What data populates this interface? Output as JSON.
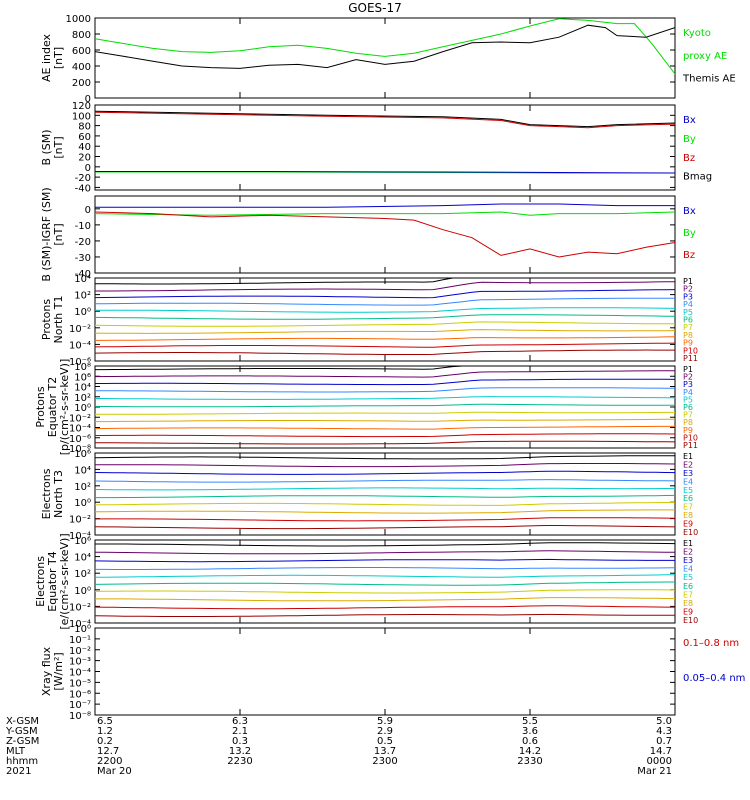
{
  "title": "GOES-17",
  "colors": {
    "black": "#000000",
    "green": "#00dd00",
    "red": "#cc0000",
    "blue": "#0000cc",
    "darkred": "#990000"
  },
  "chart_data": [
    {
      "type": "line",
      "ylabel": [
        "AE index",
        "[nT]"
      ],
      "ylim": [
        0,
        1000
      ],
      "yticks": [
        "0",
        "200",
        "400",
        "600",
        "800",
        "1000"
      ],
      "legend": [
        {
          "label": "Kyoto",
          "color": "#00dd00"
        },
        {
          "label": "proxy AE",
          "color": "#00dd00"
        },
        {
          "label": "Themis AE",
          "color": "#000000"
        }
      ],
      "series": [
        {
          "name": "Kyoto proxy AE",
          "color": "#00dd00",
          "x": [
            0,
            0.05,
            0.1,
            0.15,
            0.2,
            0.25,
            0.3,
            0.35,
            0.4,
            0.45,
            0.5,
            0.55,
            0.6,
            0.65,
            0.7,
            0.75,
            0.8,
            0.85,
            0.9,
            0.93,
            0.96,
            1.0
          ],
          "y": [
            740,
            680,
            620,
            580,
            570,
            590,
            640,
            660,
            620,
            560,
            520,
            560,
            640,
            720,
            800,
            900,
            990,
            970,
            930,
            930,
            680,
            300
          ]
        },
        {
          "name": "Themis AE",
          "color": "#000000",
          "x": [
            0,
            0.05,
            0.1,
            0.15,
            0.2,
            0.25,
            0.3,
            0.35,
            0.4,
            0.45,
            0.5,
            0.55,
            0.6,
            0.65,
            0.7,
            0.75,
            0.8,
            0.85,
            0.88,
            0.9,
            0.95,
            1.0
          ],
          "y": [
            580,
            520,
            460,
            400,
            380,
            370,
            410,
            420,
            380,
            480,
            420,
            460,
            580,
            690,
            700,
            690,
            760,
            910,
            880,
            780,
            760,
            880
          ]
        }
      ]
    },
    {
      "type": "line",
      "ylabel": [
        "B (SM)",
        "[nT]"
      ],
      "ylim": [
        -45,
        120
      ],
      "yticks": [
        "120",
        "100",
        "80",
        "60",
        "40",
        "20",
        "0",
        "-20",
        "-40"
      ],
      "legend": [
        {
          "label": "Bx",
          "color": "#0000cc"
        },
        {
          "label": "By",
          "color": "#00dd00"
        },
        {
          "label": "Bz",
          "color": "#cc0000"
        },
        {
          "label": "Bmag",
          "color": "#000000"
        }
      ],
      "series": [
        {
          "name": "Bmag",
          "color": "#000000",
          "x": [
            0,
            0.2,
            0.4,
            0.6,
            0.7,
            0.75,
            0.8,
            0.85,
            0.9,
            1.0
          ],
          "y": [
            108,
            104,
            100,
            97,
            92,
            82,
            80,
            78,
            82,
            85
          ]
        },
        {
          "name": "Bz",
          "color": "#cc0000",
          "x": [
            0,
            0.2,
            0.4,
            0.6,
            0.7,
            0.75,
            0.8,
            0.85,
            0.9,
            1.0
          ],
          "y": [
            106,
            102,
            98,
            95,
            90,
            80,
            78,
            76,
            80,
            83
          ]
        },
        {
          "name": "By",
          "color": "#00dd00",
          "x": [
            0,
            0.3,
            0.6,
            0.8,
            1.0
          ],
          "y": [
            -10,
            -10,
            -11,
            -12,
            -12
          ]
        },
        {
          "name": "Bx",
          "color": "#0000cc",
          "x": [
            0,
            0.3,
            0.6,
            0.8,
            1.0
          ],
          "y": [
            -9,
            -9,
            -10,
            -11,
            -12
          ]
        }
      ]
    },
    {
      "type": "line",
      "ylabel": [
        "B (SM)-IGRF (SM)",
        "[nT]"
      ],
      "ylim": [
        -40,
        8
      ],
      "yticks": [
        "0",
        "-10",
        "-20",
        "-30",
        "-40"
      ],
      "legend": [
        {
          "label": "Bx",
          "color": "#0000cc"
        },
        {
          "label": "By",
          "color": "#00dd00"
        },
        {
          "label": "Bz",
          "color": "#cc0000"
        }
      ],
      "series": [
        {
          "name": "Bx",
          "color": "#0000cc",
          "x": [
            0,
            0.2,
            0.4,
            0.6,
            0.7,
            0.8,
            0.9,
            1.0
          ],
          "y": [
            1,
            1,
            1,
            2,
            3,
            3,
            2,
            2
          ]
        },
        {
          "name": "By",
          "color": "#00dd00",
          "x": [
            0,
            0.2,
            0.4,
            0.6,
            0.7,
            0.75,
            0.8,
            0.9,
            1.0
          ],
          "y": [
            -3,
            -4,
            -3,
            -3,
            -2,
            -4,
            -3,
            -3,
            -2
          ]
        },
        {
          "name": "Bz",
          "color": "#cc0000",
          "x": [
            0,
            0.1,
            0.2,
            0.3,
            0.4,
            0.5,
            0.55,
            0.6,
            0.65,
            0.7,
            0.75,
            0.8,
            0.85,
            0.9,
            0.95,
            1.0
          ],
          "y": [
            -2,
            -3,
            -5,
            -4,
            -5,
            -6,
            -7,
            -13,
            -18,
            -29,
            -25,
            -30,
            -27,
            -28,
            -24,
            -21
          ]
        }
      ]
    },
    {
      "type": "line",
      "log": true,
      "ylabel": [
        "Protons",
        "North T1"
      ],
      "ylim": [
        -6,
        4
      ],
      "yticks": [
        "10⁴",
        "10²",
        "10⁰",
        "10⁻²",
        "10⁻⁴",
        "10⁻⁶"
      ],
      "legend": [
        {
          "label": "P1",
          "color": "#000000"
        },
        {
          "label": "P2",
          "color": "#660066"
        },
        {
          "label": "P3",
          "color": "#0000cc"
        },
        {
          "label": "P4",
          "color": "#3388ff"
        },
        {
          "label": "P5",
          "color": "#00cccc"
        },
        {
          "label": "P6",
          "color": "#00bb88"
        },
        {
          "label": "P7",
          "color": "#cccc00"
        },
        {
          "label": "P8",
          "color": "#ddaa00"
        },
        {
          "label": "P9",
          "color": "#ff6600"
        },
        {
          "label": "P10",
          "color": "#cc0000"
        },
        {
          "label": "P11",
          "color": "#990000"
        }
      ]
    },
    {
      "type": "line",
      "log": true,
      "ylabel": [
        "Protons",
        "Equator T2",
        "[p/(cm²-s-sr-keV)]"
      ],
      "ylim": [
        -8,
        8
      ],
      "yticks": [
        "10⁸",
        "10⁶",
        "10⁴",
        "10²",
        "10⁰",
        "10⁻²",
        "10⁻⁴",
        "10⁻⁶",
        "10⁻⁸"
      ],
      "legend": [
        {
          "label": "P1",
          "color": "#000000"
        },
        {
          "label": "P2",
          "color": "#660066"
        },
        {
          "label": "P3",
          "color": "#0000cc"
        },
        {
          "label": "P4",
          "color": "#3388ff"
        },
        {
          "label": "P5",
          "color": "#00cccc"
        },
        {
          "label": "P6",
          "color": "#00bb88"
        },
        {
          "label": "P7",
          "color": "#cccc00"
        },
        {
          "label": "P8",
          "color": "#ddaa00"
        },
        {
          "label": "P9",
          "color": "#ff6600"
        },
        {
          "label": "P10",
          "color": "#cc0000"
        },
        {
          "label": "P11",
          "color": "#990000"
        }
      ]
    },
    {
      "type": "line",
      "log": true,
      "ylabel": [
        "Electrons",
        "North T3"
      ],
      "ylim": [
        -4,
        6
      ],
      "yticks": [
        "10⁶",
        "10⁴",
        "10²",
        "10⁰",
        "10⁻²",
        "10⁻⁴"
      ],
      "legend": [
        {
          "label": "E1",
          "color": "#000000"
        },
        {
          "label": "E2",
          "color": "#660066"
        },
        {
          "label": "E3",
          "color": "#0000cc"
        },
        {
          "label": "E4",
          "color": "#3388ff"
        },
        {
          "label": "E5",
          "color": "#00cccc"
        },
        {
          "label": "E6",
          "color": "#00bb88"
        },
        {
          "label": "E7",
          "color": "#cccc00"
        },
        {
          "label": "E8",
          "color": "#ddaa00"
        },
        {
          "label": "E9",
          "color": "#cc0000"
        },
        {
          "label": "E10",
          "color": "#990000"
        }
      ]
    },
    {
      "type": "line",
      "log": true,
      "ylabel": [
        "Electrons",
        "Equator T4",
        "[e/(cm²-s-sr-keV)]"
      ],
      "ylim": [
        -4,
        6
      ],
      "yticks": [
        "10⁶",
        "10⁴",
        "10²",
        "10⁰",
        "10⁻²",
        "10⁻⁴"
      ],
      "legend": [
        {
          "label": "E1",
          "color": "#000000"
        },
        {
          "label": "E2",
          "color": "#660066"
        },
        {
          "label": "E3",
          "color": "#0000cc"
        },
        {
          "label": "E4",
          "color": "#3388ff"
        },
        {
          "label": "E5",
          "color": "#00cccc"
        },
        {
          "label": "E6",
          "color": "#00bb88"
        },
        {
          "label": "E7",
          "color": "#cccc00"
        },
        {
          "label": "E8",
          "color": "#ddaa00"
        },
        {
          "label": "E9",
          "color": "#cc0000"
        },
        {
          "label": "E10",
          "color": "#990000"
        }
      ]
    },
    {
      "type": "line",
      "log": true,
      "ylabel": [
        "Xray flux",
        "[W/m²]"
      ],
      "ylim": [
        -8,
        0
      ],
      "yticks": [
        "10⁰",
        "10⁻¹",
        "10⁻²",
        "10⁻³",
        "10⁻⁴",
        "10⁻⁵",
        "10⁻⁶",
        "10⁻⁷",
        "10⁻⁸"
      ],
      "legend": [
        {
          "label": "0.1–0.8 nm",
          "color": "#cc0000"
        },
        {
          "label": "0.05–0.4 nm",
          "color": "#0000cc"
        }
      ],
      "series": []
    }
  ],
  "footer": {
    "row_labels": [
      "X-GSM",
      "Y-GSM",
      "Z-GSM",
      "MLT",
      "hhmm",
      "2021"
    ],
    "columns": [
      [
        "6.5",
        "1.2",
        "0.2",
        "12.7",
        "2200",
        "Mar 20"
      ],
      [
        "6.3",
        "2.1",
        "0.3",
        "13.2",
        "2230",
        ""
      ],
      [
        "5.9",
        "2.9",
        "0.5",
        "13.7",
        "2300",
        ""
      ],
      [
        "5.5",
        "3.6",
        "0.6",
        "14.2",
        "2330",
        ""
      ],
      [
        "5.0",
        "4.3",
        "0.7",
        "14.7",
        "0000",
        "Mar 21"
      ]
    ]
  }
}
